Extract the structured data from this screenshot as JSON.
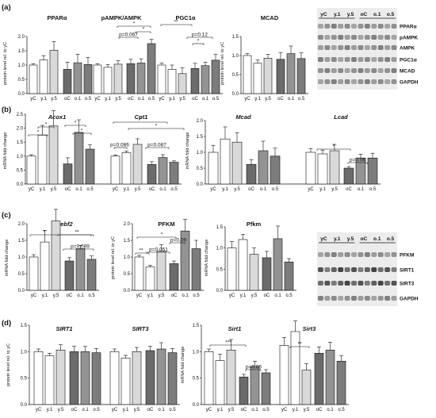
{
  "panels": [
    {
      "id": "a",
      "label": "(a)"
    },
    {
      "id": "b",
      "label": "(b)"
    },
    {
      "id": "c",
      "label": "(c)"
    },
    {
      "id": "d",
      "label": "(d)"
    }
  ],
  "fill_colors": {
    "young": "#ffffff",
    "y1": "#ffffff",
    "y5": "#d9d9d9",
    "oldC": "#6b6b6b",
    "o1": "#939393",
    "o5": "#7c7c7c",
    "grey_highlight": "#bdbdbd"
  },
  "categories": [
    "yC",
    "y.1",
    "y.5",
    "oC",
    "o.1",
    "o.5"
  ],
  "chart_data": [
    {
      "id": "a_left",
      "type": "bar",
      "ylabel": "protein level rel. to yC",
      "ylim": [
        0,
        2
      ],
      "yticks": [
        "0.0",
        "0.5",
        "1.0",
        "1.5",
        "2.0"
      ],
      "groups": [
        {
          "title": "PPARα",
          "values": [
            1.0,
            1.18,
            1.52,
            0.85,
            1.08,
            1.02
          ],
          "errors": [
            0.05,
            0.15,
            0.3,
            0.25,
            0.3,
            0.25
          ]
        },
        {
          "title": "pAMPK/AMPK",
          "values": [
            1.0,
            0.92,
            1.03,
            1.05,
            1.07,
            1.75
          ],
          "errors": [
            0.05,
            0.1,
            0.12,
            0.15,
            0.15,
            0.15
          ]
        },
        {
          "title": "PGC1α",
          "values": [
            1.0,
            0.85,
            0.7,
            0.88,
            0.98,
            1.17
          ],
          "errors": [
            0.07,
            0.15,
            0.2,
            0.18,
            0.12,
            0.2
          ]
        }
      ],
      "annotations": [
        "*",
        "*",
        "p=0.067",
        "**",
        "*",
        "p=0.12"
      ]
    },
    {
      "id": "a_mcad",
      "type": "bar",
      "title": "MCAD",
      "ylabel": "protein level rel. to yC",
      "ylim": [
        0,
        1.5
      ],
      "yticks": [
        "0.0",
        "0.5",
        "1.0",
        "1.5"
      ],
      "values": [
        1.0,
        0.8,
        0.93,
        0.9,
        1.05,
        0.92
      ],
      "errors": [
        0.05,
        0.08,
        0.1,
        0.18,
        0.2,
        0.15
      ]
    },
    {
      "id": "b_left",
      "type": "bar",
      "ylabel": "mRNA fold change",
      "ylim": [
        0,
        2.5
      ],
      "yticks": [
        "0.0",
        "0.5",
        "1.0",
        "1.5",
        "2.0",
        "2.5"
      ],
      "groups": [
        {
          "title": "Acox1",
          "values": [
            1.0,
            1.75,
            2.08,
            0.72,
            1.85,
            1.25
          ],
          "errors": [
            0.05,
            0.35,
            0.55,
            0.22,
            0.45,
            0.15
          ]
        },
        {
          "title": "Cpt1",
          "values": [
            1.0,
            1.12,
            1.42,
            0.7,
            0.95,
            0.78
          ],
          "errors": [
            0.04,
            0.06,
            0.2,
            0.1,
            0.1,
            0.05
          ]
        }
      ],
      "annotations": [
        "*",
        "*",
        "*",
        "*",
        "*",
        "*",
        "p=0.086",
        "p=0.087"
      ]
    },
    {
      "id": "b_right",
      "type": "bar",
      "ylabel": "mRNA fold change",
      "ylim": [
        0,
        2.0
      ],
      "yticks": [
        "0.0",
        "0.5",
        "1.0",
        "1.5",
        "2.0"
      ],
      "groups": [
        {
          "title": "Mcad",
          "values": [
            1.0,
            1.42,
            1.32,
            0.62,
            1.05,
            0.88
          ],
          "errors": [
            0.22,
            0.38,
            0.3,
            0.15,
            0.3,
            0.25
          ]
        },
        {
          "title": "Lcad",
          "values": [
            1.0,
            0.95,
            1.05,
            0.5,
            0.82,
            0.82
          ],
          "errors": [
            0.12,
            0.12,
            0.2,
            0.05,
            0.12,
            0.15
          ]
        }
      ],
      "annotations": [
        "*",
        "p=0.06"
      ]
    },
    {
      "id": "c_srebf2",
      "type": "bar",
      "title": "Srebf2",
      "ylabel": "mRNA fold change",
      "ylim": [
        0,
        2.0
      ],
      "yticks": [
        "0.0",
        "0.5",
        "1.0",
        "1.5",
        "2.0"
      ],
      "values": [
        1.0,
        1.45,
        2.08,
        0.88,
        1.25,
        0.93
      ],
      "errors": [
        0.07,
        0.35,
        0.35,
        0.1,
        0.1,
        0.1
      ],
      "annotations": [
        "*",
        "**",
        "p=0.089"
      ]
    },
    {
      "id": "c_pfkm_prot",
      "type": "bar",
      "title": "PFKM",
      "ylabel": "protein level rel. to yC",
      "ylim": [
        0,
        2.0
      ],
      "yticks": [
        "0.0",
        "0.5",
        "1.0",
        "1.5",
        "2.0"
      ],
      "values": [
        1.0,
        0.7,
        1.17,
        0.8,
        1.78,
        1.25
      ],
      "errors": [
        0.05,
        0.05,
        0.2,
        0.08,
        0.35,
        0.25
      ],
      "annotations": [
        "*",
        "**",
        "p=0.051",
        "p=0.09"
      ]
    },
    {
      "id": "c_pfkm_mrna",
      "type": "bar",
      "title": "Pfkm",
      "ylabel": "mRNA fold change",
      "ylim": [
        0,
        1.5
      ],
      "yticks": [
        "0.0",
        "0.5",
        "1.0",
        "1.5"
      ],
      "values": [
        1.0,
        1.2,
        0.85,
        0.77,
        1.22,
        0.67
      ],
      "errors": [
        0.15,
        0.12,
        0.15,
        0.15,
        0.3,
        0.08
      ]
    },
    {
      "id": "d_left",
      "type": "bar",
      "ylabel": "protein level rel. to yC",
      "ylim": [
        0,
        1.5
      ],
      "yticks": [
        "0.0",
        "0.5",
        "1.0",
        "1.5"
      ],
      "groups": [
        {
          "title": "SIRT1",
          "values": [
            1.0,
            0.92,
            1.03,
            1.0,
            1.0,
            0.98
          ],
          "errors": [
            0.05,
            0.05,
            0.1,
            0.1,
            0.1,
            0.08
          ]
        },
        {
          "title": "SIRT3",
          "values": [
            1.0,
            0.88,
            1.0,
            1.02,
            1.05,
            0.98
          ],
          "errors": [
            0.05,
            0.05,
            0.08,
            0.08,
            0.12,
            0.08
          ]
        }
      ]
    },
    {
      "id": "d_right",
      "type": "bar",
      "ylabel": "mRNA fold change",
      "ylim": [
        0,
        1.5
      ],
      "yticks": [
        "0.0",
        "0.5",
        "1.0",
        "1.5"
      ],
      "groups": [
        {
          "title": "Sirt1",
          "values": [
            1.0,
            0.83,
            1.03,
            0.52,
            0.72,
            0.6
          ],
          "errors": [
            0.05,
            0.12,
            0.2,
            0.05,
            0.1,
            0.06
          ]
        },
        {
          "title": "Sirt3",
          "values": [
            1.12,
            1.38,
            0.65,
            0.97,
            1.03,
            0.82
          ],
          "errors": [
            0.15,
            0.2,
            0.12,
            0.12,
            0.15,
            0.1
          ]
        }
      ],
      "annotations": [
        "***",
        "p=0.06",
        "**"
      ]
    }
  ],
  "blots": [
    {
      "id": "blot_a",
      "header": [
        "yC",
        "y.1",
        "y.5",
        "oC",
        "o.1",
        "o.5"
      ],
      "bands": [
        "PPARα",
        "pAMPK",
        "AMPK",
        "PGC1α",
        "MCAD",
        "GAPDH"
      ]
    },
    {
      "id": "blot_c",
      "header": [
        "yC",
        "y.1",
        "y.5",
        "oC",
        "o.1",
        "o.5"
      ],
      "bands": [
        "PFKM",
        "SIRT1",
        "SIRT3",
        "GAPDH"
      ]
    }
  ]
}
